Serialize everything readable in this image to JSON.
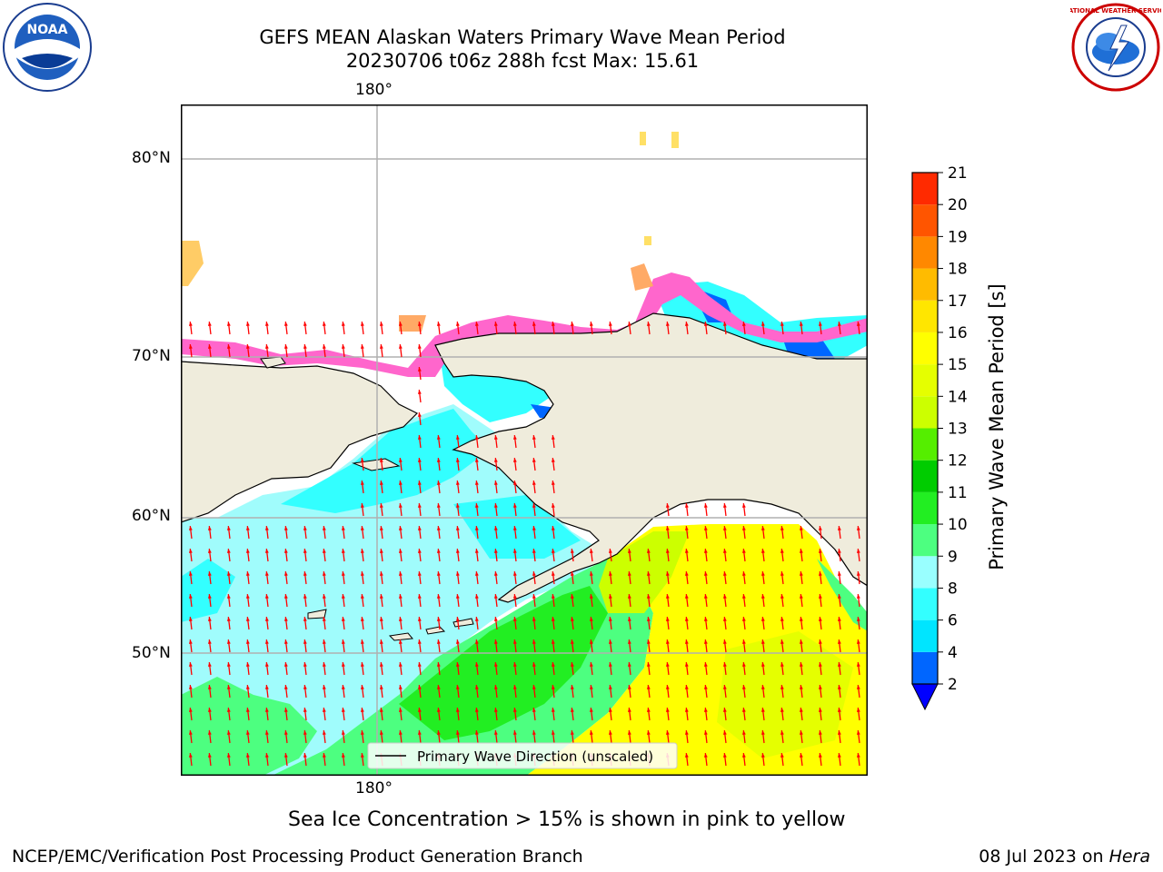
{
  "header": {
    "title_line1": "GEFS MEAN Alaskan Waters Primary Wave Mean Period",
    "title_line2": "20230706 t06z 288h fcst   Max: 15.61"
  },
  "map": {
    "lon_label_top": "180°",
    "lon_label_bottom": "180°",
    "lat_labels": [
      "80°N",
      "70°N",
      "60°N",
      "50°N"
    ],
    "legend_label": "Primary Wave Direction (unscaled)",
    "land_color": "#efecdc",
    "arrow_color": "#ff0000"
  },
  "colorbar": {
    "label": "Primary Wave Mean Period [s]",
    "ticks": [
      "2",
      "4",
      "6",
      "8",
      "9",
      "10",
      "11",
      "12",
      "13",
      "14",
      "15",
      "16",
      "17",
      "18",
      "19",
      "20",
      "21"
    ],
    "colors": [
      "#0066ff",
      "#00e5ff",
      "#33ffff",
      "#99ffff",
      "#4dff80",
      "#22ee22",
      "#00cc00",
      "#55ee00",
      "#ccff00",
      "#e5ff00",
      "#ffff00",
      "#ffe600",
      "#ffbb00",
      "#ff8800",
      "#ff5500",
      "#ff2a00",
      "#ff0000"
    ],
    "under_color": "#0000ff"
  },
  "caption": "Sea Ice Concentration > 15% is shown in pink to yellow",
  "footer": {
    "left": "NCEP/EMC/Verification Post Processing Product Generation Branch",
    "right_prefix": "08 Jul 2023 on ",
    "right_host": "Hera"
  },
  "logos": {
    "left_text": "NOAA",
    "right_text": "NATIONAL WEATHER SERVICE"
  }
}
